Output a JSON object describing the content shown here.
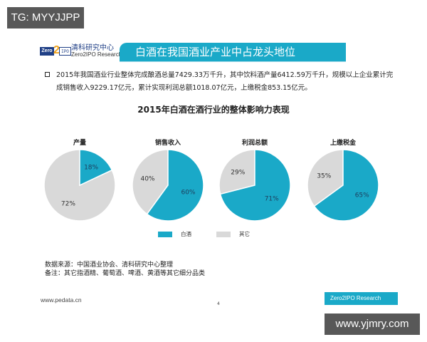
{
  "watermarks": {
    "top": "TG: MYYJJPP",
    "bottom": "www.yjmry.com"
  },
  "header": {
    "logo": {
      "left": "Zero",
      "mid": "2",
      "right": "IPO"
    },
    "brand_cn": "清科研究中心",
    "brand_en": "Zero2IPO Research",
    "title": "白酒在我国酒业产业中占龙头地位"
  },
  "paragraph": "2015年我国酒业行业整体完成酿酒总量7429.33万千升，其中饮料酒产量6412.59万千升，规模以上企业累计完成销售收入9229.17亿元，累计实现利润总额1018.07亿元，上缴税金853.15亿元。",
  "colors": {
    "baijiu": "#1aa9c8",
    "other": "#d9d9d9"
  },
  "chart_data": {
    "type": "pie",
    "title": "2015年白酒在酒行业的整体影响力表现",
    "legend": [
      "白酒",
      "其它"
    ],
    "legend_position": "bottom",
    "charts": [
      {
        "label": "产量",
        "series": [
          {
            "name": "白酒",
            "value": 18,
            "text": "18%"
          },
          {
            "name": "其它",
            "value": 72,
            "text": "72%"
          }
        ]
      },
      {
        "label": "销售收入",
        "series": [
          {
            "name": "白酒",
            "value": 60,
            "text": "60%"
          },
          {
            "name": "其它",
            "value": 40,
            "text": "40%"
          }
        ]
      },
      {
        "label": "利润总额",
        "series": [
          {
            "name": "白酒",
            "value": 71,
            "text": "71%"
          },
          {
            "name": "其它",
            "value": 29,
            "text": "29%"
          }
        ]
      },
      {
        "label": "上缴税金",
        "series": [
          {
            "name": "白酒",
            "value": 65,
            "text": "65%"
          },
          {
            "name": "其它",
            "value": 35,
            "text": "35%"
          }
        ]
      }
    ]
  },
  "source": {
    "line1": "数据来源：中国酒业协会、清科研究中心整理",
    "line2": "备注：其它指酒精、葡萄酒、啤酒、黄酒等其它细分品类"
  },
  "footer": {
    "site": "www.pedata.cn",
    "page": "4",
    "brand": "Zero2IPO Research"
  }
}
